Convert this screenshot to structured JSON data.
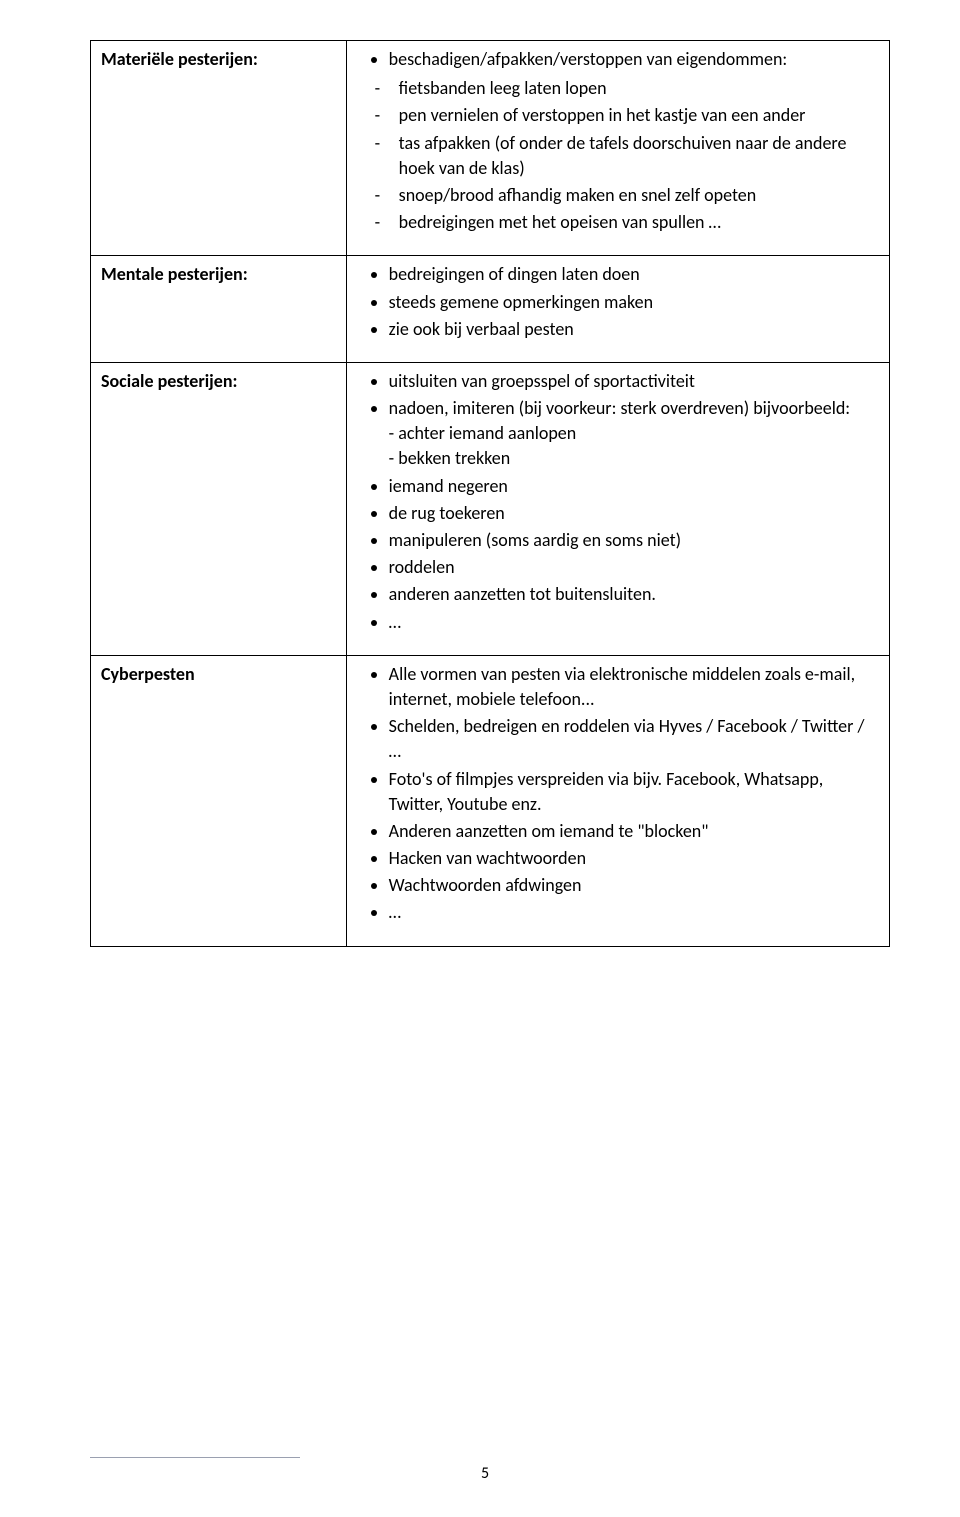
{
  "rows": [
    {
      "label": "Materiële pesterijen:",
      "body": {
        "top": [
          {
            "text": "beschadigen/afpakken/verstoppen van eigendommen:"
          }
        ],
        "dash": [
          "fietsbanden leeg laten lopen",
          "pen vernielen of verstoppen in het kastje van een ander",
          "tas afpakken (of onder de tafels doorschuiven naar de andere hoek van de klas)",
          "snoep/brood afhandig maken en snel zelf opeten",
          "bedreigingen met het opeisen van spullen …"
        ]
      }
    },
    {
      "label": "Mentale pesterijen:",
      "body": {
        "top": [
          {
            "text": "bedreigingen of dingen laten doen"
          },
          {
            "text": "steeds gemene opmerkingen maken"
          },
          {
            "text": "zie ook bij verbaal pesten"
          }
        ]
      }
    },
    {
      "label": "Sociale pesterijen:",
      "body": {
        "top": [
          {
            "text": "uitsluiten van groepsspel of sportactiviteit"
          },
          {
            "text": "nadoen, imiteren (bij voorkeur: sterk overdreven) bijvoorbeeld:",
            "sub": [
              "achter iemand aanlopen",
              "bekken trekken"
            ]
          },
          {
            "text": "iemand negeren"
          },
          {
            "text": "de rug toekeren"
          },
          {
            "text": "manipuleren (soms aardig en soms niet)"
          },
          {
            "text": "roddelen"
          },
          {
            "text": "anderen aanzetten tot buitensluiten."
          },
          {
            "text": "…"
          }
        ]
      }
    },
    {
      "label": "Cyberpesten",
      "body": {
        "top": [
          {
            "text": "Alle vormen van pesten via elektronische middelen zoals e-mail, internet, mobiele telefoon..."
          },
          {
            "text": "Schelden, bedreigen en roddelen via Hyves / Facebook / Twitter / …"
          },
          {
            "text": "Foto's of filmpjes verspreiden via bijv. Facebook, Whatsapp, Twitter, Youtube enz."
          },
          {
            "text": "Anderen aanzetten om iemand te \"blocken\""
          },
          {
            "text": "Hacken van wachtwoorden"
          },
          {
            "text": "Wachtwoorden afdwingen"
          },
          {
            "text": "…"
          }
        ]
      }
    }
  ],
  "pageNumber": "5"
}
